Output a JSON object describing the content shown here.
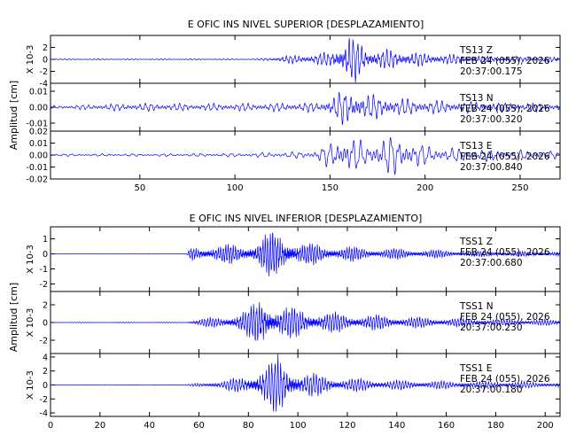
{
  "colors": {
    "trace": "#0000ff",
    "axis": "#000000",
    "background": "#ffffff"
  },
  "chart_data": [
    {
      "type": "line",
      "title": "E OFIC INS NIVEL SUPERIOR [DESPLAZAMIENTO]",
      "ylabel": "Amplitud [cm]",
      "xlim": [
        3,
        271
      ],
      "xticks": [
        50,
        100,
        150,
        200,
        250
      ],
      "channels": [
        {
          "station": "TS13",
          "component": "Z",
          "date": "FEB 24 (055), 2026",
          "time": "20:37:00.175",
          "ylim": [
            -4,
            4
          ],
          "yticks": [
            -4,
            -2,
            0,
            2
          ],
          "tick_labels": [
            "-4",
            "-2",
            "0",
            "2"
          ],
          "scale_label": "X 10-3",
          "envelope": [
            [
              3,
              0.1
            ],
            [
              110,
              0.1
            ],
            [
              118,
              0.3
            ],
            [
              125,
              0.6
            ],
            [
              140,
              0.8
            ],
            [
              150,
              1.2
            ],
            [
              155,
              2.4
            ],
            [
              160,
              4.2
            ],
            [
              165,
              3.0
            ],
            [
              170,
              1.8
            ],
            [
              180,
              1.6
            ],
            [
              190,
              1.4
            ],
            [
              200,
              1.0
            ],
            [
              220,
              0.7
            ],
            [
              240,
              0.5
            ],
            [
              271,
              0.4
            ]
          ],
          "period": 2.2
        },
        {
          "station": "TS13",
          "component": "N",
          "date": "FEB 24 (055), 2026",
          "time": "20:37:00.320",
          "ylim": [
            -0.015,
            0.015
          ],
          "yticks": [
            -0.01,
            0.0,
            0.01
          ],
          "tick_labels": [
            "-0.01",
            "0.00",
            "0.01"
          ],
          "scale_label": "",
          "envelope": [
            [
              3,
              0.001
            ],
            [
              20,
              0.0015
            ],
            [
              35,
              0.0022
            ],
            [
              55,
              0.0025
            ],
            [
              80,
              0.0022
            ],
            [
              110,
              0.0025
            ],
            [
              130,
              0.0028
            ],
            [
              145,
              0.003
            ],
            [
              150,
              0.006
            ],
            [
              155,
              0.0095
            ],
            [
              160,
              0.011
            ],
            [
              170,
              0.008
            ],
            [
              180,
              0.0065
            ],
            [
              190,
              0.005
            ],
            [
              210,
              0.004
            ],
            [
              240,
              0.003
            ],
            [
              271,
              0.0025
            ]
          ],
          "period": 3.0
        },
        {
          "station": "TS13",
          "component": "E",
          "date": "FEB 24 (055), 2026",
          "time": "20:37:00.840",
          "ylim": [
            -0.02,
            0.02
          ],
          "yticks": [
            -0.02,
            -0.01,
            0.0,
            0.01,
            0.02
          ],
          "tick_labels": [
            "-0.02",
            "-0.01",
            "0.00",
            "0.01",
            "0.02"
          ],
          "scale_label": "",
          "envelope": [
            [
              3,
              0.001
            ],
            [
              50,
              0.001
            ],
            [
              100,
              0.0015
            ],
            [
              140,
              0.003
            ],
            [
              150,
              0.01
            ],
            [
              160,
              0.017
            ],
            [
              170,
              0.008
            ],
            [
              180,
              0.017
            ],
            [
              190,
              0.013
            ],
            [
              200,
              0.008
            ],
            [
              210,
              0.006
            ],
            [
              230,
              0.005
            ],
            [
              250,
              0.004
            ],
            [
              271,
              0.003
            ]
          ],
          "period": 4.0
        }
      ]
    },
    {
      "type": "line",
      "title": "E OFIC INS NIVEL INFERIOR [DESPLAZAMIENTO]",
      "ylabel": "Amplitud [cm]",
      "xlim": [
        0,
        206
      ],
      "xticks": [
        0,
        20,
        40,
        60,
        80,
        100,
        120,
        140,
        160,
        180,
        200
      ],
      "channels": [
        {
          "station": "TSS1",
          "component": "Z",
          "date": "FEB 24 (055), 2026",
          "time": "20:37:00.680",
          "ylim": [
            -2.5,
            1.8
          ],
          "yticks": [
            -2,
            -1,
            0,
            1
          ],
          "tick_labels": [
            "-2",
            "-1",
            "0",
            "1"
          ],
          "scale_label": "X 10-3",
          "envelope": [
            [
              0,
              0.01
            ],
            [
              55,
              0.01
            ],
            [
              57,
              0.5
            ],
            [
              70,
              0.6
            ],
            [
              80,
              0.7
            ],
            [
              85,
              1.0
            ],
            [
              90,
              1.6
            ],
            [
              95,
              1.3
            ],
            [
              100,
              0.8
            ],
            [
              110,
              0.6
            ],
            [
              130,
              0.4
            ],
            [
              150,
              0.3
            ],
            [
              170,
              0.2
            ],
            [
              206,
              0.15
            ]
          ],
          "period": 1.0
        },
        {
          "station": "TSS1",
          "component": "N",
          "date": "FEB 24 (055), 2026",
          "time": "20:37:00.230",
          "ylim": [
            -3.5,
            3.5
          ],
          "yticks": [
            -2,
            0,
            2
          ],
          "tick_labels": [
            "-2",
            "0",
            "2"
          ],
          "scale_label": "X 10-3",
          "envelope": [
            [
              0,
              0.05
            ],
            [
              55,
              0.06
            ],
            [
              60,
              0.4
            ],
            [
              70,
              0.7
            ],
            [
              80,
              1.5
            ],
            [
              86,
              3.2
            ],
            [
              90,
              2.0
            ],
            [
              100,
              1.6
            ],
            [
              110,
              1.2
            ],
            [
              120,
              1.0
            ],
            [
              150,
              0.6
            ],
            [
              180,
              0.4
            ],
            [
              206,
              0.3
            ]
          ],
          "period": 1.1
        },
        {
          "station": "TSS1",
          "component": "E",
          "date": "FEB 24 (055), 2026",
          "time": "20:37:00.180",
          "ylim": [
            -4.5,
            4.5
          ],
          "yticks": [
            -4,
            -2,
            0,
            2,
            4
          ],
          "tick_labels": [
            "-4",
            "-2",
            "0",
            "2",
            "4"
          ],
          "scale_label": "X 10-3",
          "envelope": [
            [
              0,
              0.05
            ],
            [
              55,
              0.06
            ],
            [
              60,
              0.3
            ],
            [
              70,
              0.6
            ],
            [
              80,
              1.5
            ],
            [
              88,
              3.0
            ],
            [
              92,
              4.2
            ],
            [
              96,
              3.0
            ],
            [
              100,
              2.0
            ],
            [
              110,
              1.4
            ],
            [
              120,
              1.0
            ],
            [
              140,
              0.7
            ],
            [
              170,
              0.5
            ],
            [
              206,
              0.4
            ]
          ],
          "period": 1.2
        }
      ]
    }
  ]
}
